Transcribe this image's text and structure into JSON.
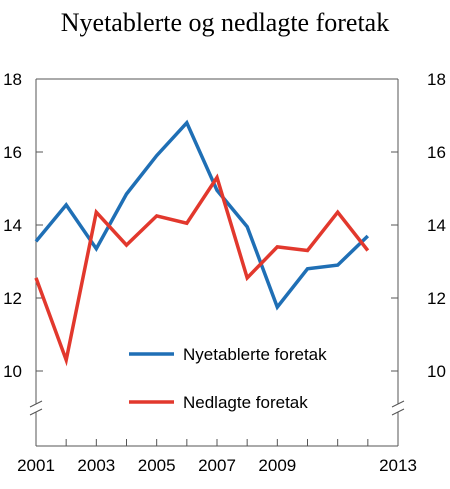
{
  "chart_data": {
    "type": "line",
    "title": "Nyetablerte og nedlagte foretak",
    "xlabel": "",
    "ylabel": "",
    "x": [
      2001,
      2002,
      2003,
      2004,
      2005,
      2006,
      2007,
      2008,
      2009,
      2010,
      2011,
      2012,
      2013
    ],
    "x_tick_labels": [
      "2001",
      "2003",
      "2005",
      "2007",
      "2009",
      "2013"
    ],
    "y_tick_values": [
      10,
      12,
      14,
      16,
      18
    ],
    "y_tick_labels": [
      "10",
      "12",
      "14",
      "16",
      "18"
    ],
    "ylim": [
      9.3,
      18
    ],
    "axis_break": true,
    "grid": false,
    "legend_position": "lower-center",
    "series": [
      {
        "name": "Nyetablerte foretak",
        "color": "#1f6fb5",
        "values": [
          13.55,
          14.55,
          13.35,
          14.85,
          15.9,
          16.8,
          14.95,
          13.95,
          11.75,
          12.8,
          12.9,
          13.7,
          null
        ]
      },
      {
        "name": "Nedlagte foretak",
        "color": "#e2382d",
        "values": [
          12.55,
          10.3,
          14.35,
          13.45,
          14.25,
          14.05,
          15.3,
          12.55,
          13.4,
          13.3,
          14.35,
          13.3,
          null
        ]
      }
    ]
  }
}
